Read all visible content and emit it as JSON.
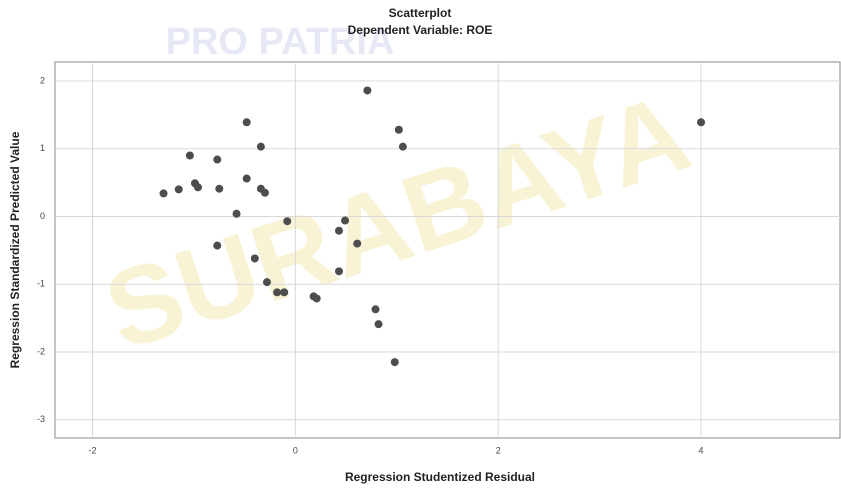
{
  "chart_data": {
    "type": "scatter",
    "title": "Scatterplot",
    "subtitle": "Dependent Variable: ROE",
    "x_label": "Regression Studentized Residual",
    "y_label": "Regression Standardized Predicted Value",
    "watermark": [
      "PRO PATRIA",
      "SURABAYA"
    ],
    "color": "#4d4d4d",
    "grid": true,
    "x": [
      -1.3,
      -1.15,
      -1.04,
      -0.99,
      -0.96,
      -0.77,
      -0.75,
      -0.77,
      -0.48,
      -0.48,
      -0.58,
      -0.34,
      -0.34,
      -0.3,
      -0.4,
      -0.28,
      -0.18,
      -0.11,
      -0.08,
      0.18,
      0.21,
      0.43,
      0.49,
      0.43,
      0.61,
      0.71,
      1.02,
      1.06,
      0.79,
      0.82,
      0.98,
      4.0
    ],
    "y": [
      0.34,
      0.4,
      0.9,
      0.49,
      0.43,
      0.84,
      0.41,
      -0.43,
      1.39,
      0.56,
      0.04,
      1.03,
      0.41,
      0.35,
      -0.62,
      -0.97,
      -1.12,
      -1.12,
      -0.07,
      -1.18,
      -1.21,
      -0.21,
      -0.06,
      -0.81,
      -0.4,
      1.86,
      1.28,
      1.03,
      -1.37,
      -1.59,
      -2.15,
      1.39
    ],
    "xlim": [
      -2.37,
      5.37
    ],
    "ylim": [
      -3.27,
      2.28
    ],
    "xticks": [
      -2,
      0,
      2,
      4
    ],
    "yticks": [
      2,
      1,
      0,
      -1,
      -2,
      -3
    ]
  }
}
